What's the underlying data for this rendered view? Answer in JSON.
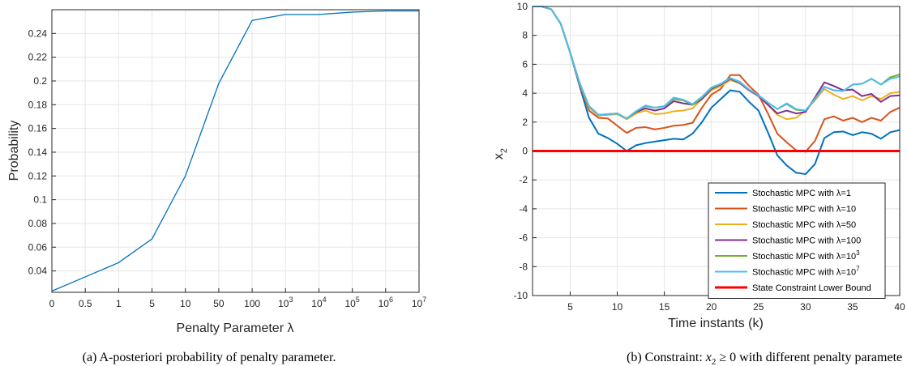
{
  "chart_data": [
    {
      "type": "line",
      "xlabel": "Penalty Parameter λ",
      "ylabel": "Probability",
      "categories": [
        "0",
        "0.5",
        "1",
        "5",
        "10",
        "50",
        "100",
        "10^3",
        "10^4",
        "10^5",
        "10^6",
        "10^7"
      ],
      "x_tick_labels": [
        {
          "base": "0"
        },
        {
          "base": "0.5"
        },
        {
          "base": "1"
        },
        {
          "base": "5"
        },
        {
          "base": "10"
        },
        {
          "base": "50"
        },
        {
          "base": "100"
        },
        {
          "base": "10",
          "exp": "3"
        },
        {
          "base": "10",
          "exp": "4"
        },
        {
          "base": "10",
          "exp": "5"
        },
        {
          "base": "10",
          "exp": "6"
        },
        {
          "base": "10",
          "exp": "7"
        }
      ],
      "series": [
        {
          "values": [
            0.023,
            0.035,
            0.047,
            0.067,
            0.12,
            0.198,
            0.251,
            0.256,
            0.256,
            0.258,
            0.259,
            0.259
          ]
        }
      ],
      "ylim": [
        0.022,
        0.26
      ],
      "y_ticks": [
        0.04,
        0.06,
        0.08,
        0.1,
        0.12,
        0.14,
        0.16,
        0.18,
        0.2,
        0.22,
        0.24
      ],
      "y_tick_labels": [
        "0.04",
        "0.06",
        "0.08",
        "0.1",
        "0.12",
        "0.14",
        "0.16",
        "0.18",
        "0.2",
        "0.22",
        "0.24"
      ],
      "grid": true,
      "color": "#0072bd",
      "caption": "(a) A-posteriori probability of penalty parameter."
    },
    {
      "type": "line",
      "xlabel": "Time instants (k)",
      "ylabel": "x",
      "ylabel_subscript": "2",
      "xlim": [
        1,
        40
      ],
      "ylim": [
        -10,
        10
      ],
      "x_ticks": [
        5,
        10,
        15,
        20,
        25,
        30,
        35,
        40
      ],
      "y_ticks": [
        -10,
        -8,
        -6,
        -4,
        -2,
        0,
        2,
        4,
        6,
        8,
        10
      ],
      "grid": true,
      "legend_position": "bottom-right",
      "x": [
        1,
        2,
        3,
        4,
        5,
        6,
        7,
        8,
        9,
        10,
        11,
        12,
        13,
        14,
        15,
        16,
        17,
        18,
        19,
        20,
        21,
        22,
        23,
        24,
        25,
        26,
        27,
        28,
        29,
        30,
        31,
        32,
        33,
        34,
        35,
        36,
        37,
        38,
        39,
        40
      ],
      "series": [
        {
          "name": "Stochastic MPC with λ=1",
          "color": "#0072bd",
          "width": 2,
          "values": [
            10,
            10,
            9.8,
            8.8,
            6.8,
            4.5,
            2.3,
            1.2,
            0.9,
            0.5,
            0.0,
            0.4,
            0.55,
            0.65,
            0.75,
            0.85,
            0.8,
            1.2,
            2.0,
            3.0,
            3.6,
            4.2,
            4.1,
            3.4,
            2.8,
            1.3,
            -0.3,
            -1.0,
            -1.5,
            -1.6,
            -0.9,
            0.9,
            1.3,
            1.35,
            1.1,
            1.3,
            1.2,
            0.85,
            1.3,
            1.45
          ]
        },
        {
          "name": "Stochastic MPC with λ=10",
          "color": "#d95319",
          "width": 2,
          "values": [
            10,
            10,
            9.8,
            8.8,
            6.8,
            4.6,
            2.8,
            2.3,
            2.25,
            1.75,
            1.25,
            1.6,
            1.65,
            1.5,
            1.6,
            1.75,
            1.8,
            1.95,
            3.0,
            3.9,
            4.3,
            5.25,
            5.25,
            4.5,
            3.9,
            2.6,
            1.2,
            0.6,
            0.05,
            -0.05,
            0.7,
            2.2,
            2.4,
            2.1,
            2.3,
            2.0,
            2.3,
            2.1,
            2.7,
            3.0
          ]
        },
        {
          "name": "Stochastic MPC with λ=50",
          "color": "#edb120",
          "width": 2,
          "values": [
            10,
            10,
            9.8,
            8.8,
            6.8,
            4.7,
            3.0,
            2.45,
            2.5,
            2.55,
            2.2,
            2.6,
            2.8,
            2.55,
            2.6,
            2.75,
            2.8,
            2.95,
            3.6,
            4.2,
            4.5,
            4.9,
            4.7,
            4.2,
            3.8,
            3.2,
            2.5,
            2.2,
            2.3,
            2.8,
            3.5,
            4.3,
            3.9,
            3.6,
            3.8,
            3.5,
            3.8,
            3.6,
            4.0,
            4.1
          ]
        },
        {
          "name": "Stochastic MPC with λ=100",
          "color": "#7e2f8e",
          "width": 2,
          "values": [
            10,
            10,
            9.8,
            8.8,
            6.8,
            4.7,
            3.1,
            2.5,
            2.55,
            2.6,
            2.25,
            2.7,
            2.95,
            2.8,
            2.95,
            3.45,
            3.3,
            3.2,
            3.6,
            4.3,
            4.6,
            5.0,
            4.7,
            4.2,
            3.8,
            3.2,
            2.6,
            2.8,
            2.6,
            2.7,
            3.7,
            4.75,
            4.5,
            4.2,
            4.25,
            3.8,
            3.95,
            3.4,
            3.8,
            3.85
          ]
        },
        {
          "name": "Stochastic MPC with λ=10^3",
          "color": "#77ac30",
          "width": 2,
          "values": [
            10,
            10,
            9.8,
            8.8,
            6.8,
            4.7,
            3.1,
            2.5,
            2.55,
            2.6,
            2.25,
            2.75,
            3.1,
            3.0,
            3.1,
            3.6,
            3.5,
            3.2,
            3.7,
            4.35,
            4.65,
            5.05,
            4.75,
            4.25,
            3.85,
            3.35,
            2.9,
            3.25,
            2.85,
            2.8,
            3.6,
            4.45,
            4.2,
            4.15,
            4.6,
            4.65,
            5.0,
            4.6,
            5.1,
            5.3
          ]
        },
        {
          "name": "Stochastic MPC with λ=10^7",
          "color": "#4dbeee",
          "width": 2,
          "values": [
            10,
            10,
            9.8,
            8.8,
            6.8,
            4.7,
            3.1,
            2.5,
            2.55,
            2.6,
            2.25,
            2.75,
            3.15,
            3.0,
            3.1,
            3.7,
            3.55,
            3.25,
            3.75,
            4.4,
            4.65,
            5.05,
            4.8,
            4.25,
            3.85,
            3.35,
            2.9,
            3.3,
            2.9,
            2.8,
            3.6,
            4.45,
            4.2,
            4.15,
            4.6,
            4.65,
            5.0,
            4.6,
            5.0,
            5.15
          ]
        },
        {
          "name": "State Constraint Lower Bound",
          "color": "#ff0000",
          "width": 3,
          "values": [
            0,
            0,
            0,
            0,
            0,
            0,
            0,
            0,
            0,
            0,
            0,
            0,
            0,
            0,
            0,
            0,
            0,
            0,
            0,
            0,
            0,
            0,
            0,
            0,
            0,
            0,
            0,
            0,
            0,
            0,
            0,
            0,
            0,
            0,
            0,
            0,
            0,
            0,
            0,
            0
          ]
        }
      ],
      "legend_labels": [
        {
          "text": "Stochastic MPC with λ=1"
        },
        {
          "text": "Stochastic MPC with λ=10"
        },
        {
          "text": "Stochastic MPC with λ=50"
        },
        {
          "text": "Stochastic MPC with λ=100"
        },
        {
          "text": "Stochastic MPC with λ=10",
          "exp": "3"
        },
        {
          "text": "Stochastic MPC with λ=10",
          "exp": "7"
        },
        {
          "text": "State Constraint Lower Bound"
        }
      ],
      "caption_prefix": "(b) Constraint: ",
      "caption_math": "x",
      "caption_sub": "2",
      "caption_rel": " ≥ 0 with different penalty paramete"
    }
  ]
}
